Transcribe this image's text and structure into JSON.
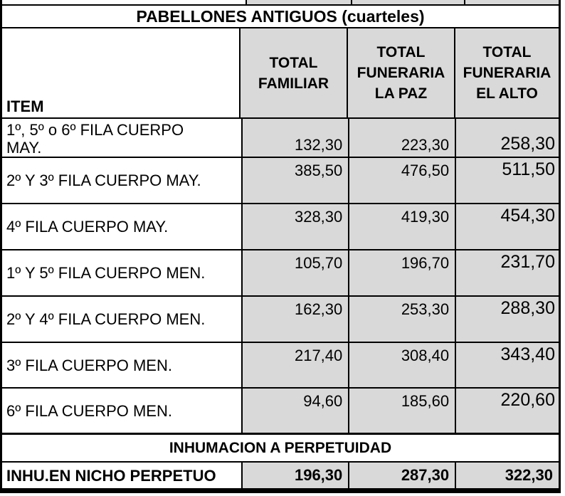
{
  "title": "PABELLONES ANTIGUOS (cuarteles)",
  "columns": {
    "item": "ITEM",
    "familiar": "TOTAL FAMILIAR",
    "la_paz": "TOTAL FUNERARIA LA PAZ",
    "el_alto": "TOTAL FUNERARIA EL ALTO"
  },
  "rows": [
    {
      "item": "1º, 5º o 6º FILA CUERPO MAY.",
      "familiar": "132,30",
      "la_paz": "223,30",
      "el_alto": "258,30"
    },
    {
      "item": "2º Y 3º FILA CUERPO MAY.",
      "familiar": "385,50",
      "la_paz": "476,50",
      "el_alto": "511,50"
    },
    {
      "item": "4º FILA CUERPO MAY.",
      "familiar": "328,30",
      "la_paz": "419,30",
      "el_alto": "454,30"
    },
    {
      "item": "1º Y 5º FILA CUERPO MEN.",
      "familiar": "105,70",
      "la_paz": "196,70",
      "el_alto": "231,70"
    },
    {
      "item": "2º Y 4º FILA CUERPO MEN.",
      "familiar": "162,30",
      "la_paz": "253,30",
      "el_alto": "288,30"
    },
    {
      "item": "3º FILA CUERPO MEN.",
      "familiar": "217,40",
      "la_paz": "308,40",
      "el_alto": "343,40"
    },
    {
      "item": "6º FILA CUERPO MEN.",
      "familiar": "94,60",
      "la_paz": "185,60",
      "el_alto": "220,60"
    }
  ],
  "section": {
    "title": "INHUMACION A PERPETUIDAD"
  },
  "summary_row": {
    "item": "INHU.EN NICHO PERPETUO",
    "familiar": "196,30",
    "la_paz": "287,30",
    "el_alto": "322,30"
  },
  "colors": {
    "cell_gray": "#d9d9d9",
    "border": "#000000",
    "background": "#ffffff"
  }
}
